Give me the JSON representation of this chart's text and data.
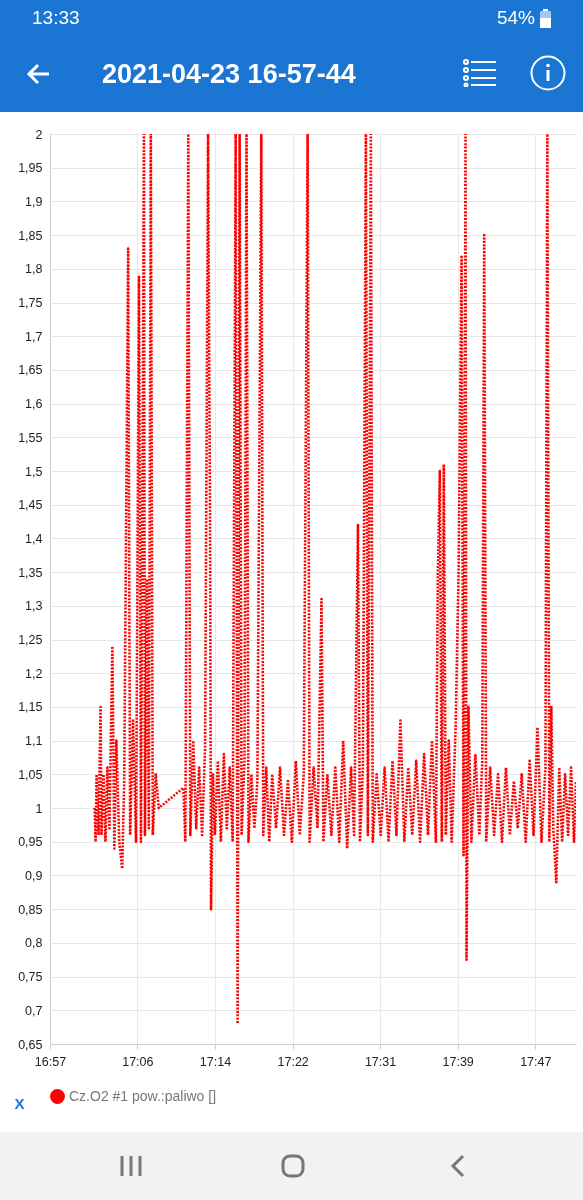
{
  "chart_data": {
    "type": "line",
    "title": "2021-04-23 16-57-44",
    "xlabel": "X",
    "annotations": [
      "13:33",
      "54%"
    ],
    "x": [
      17.0266,
      17.0283,
      17.03,
      17.0334,
      17.0368,
      17.0384,
      17.0418,
      17.0452,
      17.0486,
      17.052,
      17.0571,
      17.0605,
      17.0639,
      17.0689,
      17.074,
      17.0774,
      17.0842,
      17.0876,
      17.0926,
      17.0977,
      17.1028,
      17.1062,
      17.1113,
      17.113,
      17.1164,
      17.1197,
      17.1231,
      17.1265,
      17.1316,
      17.1367,
      17.179,
      17.1824,
      17.1875,
      17.1909,
      17.196,
      17.201,
      17.2061,
      17.2112,
      17.2163,
      17.2214,
      17.2248,
      17.2265,
      17.2298,
      17.2332,
      17.2383,
      17.2434,
      17.2485,
      17.2536,
      17.2586,
      17.2637,
      17.2688,
      17.2722,
      17.2756,
      17.279,
      17.284,
      17.2874,
      17.2908,
      17.2959,
      17.301,
      17.3061,
      17.3128,
      17.3162,
      17.3213,
      17.3264,
      17.3315,
      17.3382,
      17.345,
      17.3518,
      17.3586,
      17.3653,
      17.3721,
      17.3789,
      17.3857,
      17.3924,
      17.3958,
      17.4026,
      17.4094,
      17.4162,
      17.4195,
      17.4263,
      17.4331,
      17.4399,
      17.4467,
      17.4534,
      17.4602,
      17.467,
      17.4721,
      17.4788,
      17.4822,
      17.4873,
      17.4924,
      17.4958,
      17.5009,
      17.5042,
      17.511,
      17.5178,
      17.5246,
      17.5313,
      17.5381,
      17.5449,
      17.5517,
      17.5584,
      17.5652,
      17.572,
      17.5788,
      17.5855,
      17.5923,
      17.5991,
      17.6059,
      17.6126,
      17.616,
      17.6194,
      17.6228,
      17.6262,
      17.6296,
      17.6347,
      17.6397,
      17.6465,
      17.6516,
      17.6567,
      17.6601,
      17.6635,
      17.6652,
      17.6685,
      17.6736,
      17.6804,
      17.6872,
      17.6923,
      17.6956,
      17.699,
      17.7058,
      17.7126,
      17.7193,
      17.7261,
      17.7329,
      17.7397,
      17.7465,
      17.7532,
      17.76,
      17.7668,
      17.7736,
      17.7803,
      17.7871,
      17.7939,
      17.8007,
      17.804,
      17.8074,
      17.8108,
      17.8142,
      17.8193,
      17.8244,
      17.8294,
      17.8345,
      17.8396,
      17.8447,
      17.8498,
      17.8532
    ],
    "series": [
      {
        "name": "Cz.O2 #1 pow.:paliwo []",
        "color": "#ff0000",
        "values": [
          1.0,
          0.95,
          1.05,
          0.96,
          1.15,
          0.96,
          1.05,
          0.95,
          1.06,
          0.97,
          1.24,
          0.94,
          1.1,
          0.95,
          0.91,
          1.04,
          1.83,
          0.96,
          1.13,
          0.95,
          1.79,
          0.95,
          2.0,
          0.96,
          1.34,
          0.97,
          2.0,
          0.96,
          1.05,
          1.0,
          1.03,
          0.95,
          2.0,
          0.96,
          1.1,
          0.97,
          1.06,
          0.96,
          1.09,
          2.0,
          1.43,
          0.85,
          1.05,
          0.96,
          1.07,
          0.95,
          1.08,
          0.97,
          1.06,
          0.95,
          2.0,
          0.68,
          2.0,
          0.96,
          1.07,
          2.0,
          0.95,
          1.05,
          0.97,
          1.04,
          2.0,
          0.96,
          1.06,
          0.95,
          1.05,
          0.97,
          1.06,
          0.96,
          1.04,
          0.95,
          1.07,
          0.96,
          1.05,
          2.0,
          0.95,
          1.06,
          0.97,
          1.31,
          0.95,
          1.05,
          0.96,
          1.06,
          0.95,
          1.1,
          0.94,
          1.06,
          0.96,
          1.42,
          0.95,
          1.06,
          2.0,
          0.96,
          2.0,
          0.95,
          1.05,
          0.96,
          1.06,
          0.95,
          1.07,
          0.96,
          1.13,
          0.95,
          1.06,
          0.96,
          1.07,
          0.95,
          1.08,
          0.96,
          1.1,
          0.95,
          1.35,
          1.5,
          0.95,
          1.51,
          0.96,
          1.1,
          0.95,
          1.12,
          1.35,
          1.82,
          0.93,
          2.0,
          0.775,
          1.15,
          0.95,
          1.08,
          0.96,
          1.07,
          1.85,
          0.95,
          1.06,
          0.96,
          1.05,
          0.95,
          1.06,
          0.96,
          1.04,
          0.97,
          1.05,
          0.95,
          1.07,
          0.96,
          1.12,
          0.95,
          1.06,
          2.0,
          0.95,
          1.15,
          0.97,
          0.89,
          1.06,
          0.95,
          1.05,
          0.96,
          1.06,
          0.95,
          1.04
        ]
      }
    ],
    "xlim": [
      16.95,
      17.8532
    ],
    "xticks": [
      {
        "value": 16.95,
        "label": "16:57"
      },
      {
        "value": 17.1,
        "label": "17:06"
      },
      {
        "value": 17.2333,
        "label": "17:14"
      },
      {
        "value": 17.3667,
        "label": "17:22"
      },
      {
        "value": 17.5167,
        "label": "17:31"
      },
      {
        "value": 17.65,
        "label": "17:39"
      },
      {
        "value": 17.7833,
        "label": "17:47"
      }
    ],
    "ylim": [
      0.65,
      2
    ],
    "yticks": [
      {
        "value": 0.65,
        "label": "0,65"
      },
      {
        "value": 0.7,
        "label": "0,7"
      },
      {
        "value": 0.75,
        "label": "0,75"
      },
      {
        "value": 0.8,
        "label": "0,8"
      },
      {
        "value": 0.85,
        "label": "0,85"
      },
      {
        "value": 0.9,
        "label": "0,9"
      },
      {
        "value": 0.95,
        "label": "0,95"
      },
      1,
      {
        "value": 1.05,
        "label": "1,05"
      },
      {
        "value": 1.1,
        "label": "1,1"
      },
      {
        "value": 1.15,
        "label": "1,15"
      },
      {
        "value": 1.2,
        "label": "1,2"
      },
      {
        "value": 1.25,
        "label": "1,25"
      },
      {
        "value": 1.3,
        "label": "1,3"
      },
      {
        "value": 1.35,
        "label": "1,35"
      },
      {
        "value": 1.4,
        "label": "1,4"
      },
      {
        "value": 1.45,
        "label": "1,45"
      },
      {
        "value": 1.5,
        "label": "1,5"
      },
      {
        "value": 1.55,
        "label": "1,55"
      },
      {
        "value": 1.6,
        "label": "1,6"
      },
      {
        "value": 1.65,
        "label": "1,65"
      },
      {
        "value": 1.7,
        "label": "1,7"
      },
      {
        "value": 1.75,
        "label": "1,75"
      },
      {
        "value": 1.8,
        "label": "1,8"
      },
      {
        "value": 1.85,
        "label": "1,85"
      },
      {
        "value": 1.9,
        "label": "1,9"
      },
      {
        "value": 1.95,
        "label": "1,95"
      },
      2
    ],
    "grid": true,
    "legend": "bottom",
    "marker": "none",
    "line_style": "dotted"
  }
}
